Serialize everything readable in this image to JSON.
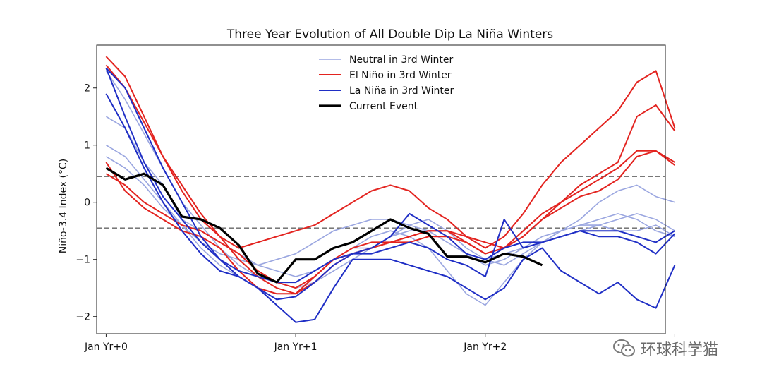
{
  "chart_data": {
    "type": "line",
    "title": "Three Year Evolution of All Double Dip La Niña Winters",
    "ylabel": "Niño-3.4 Index (°C)",
    "xlabel": "",
    "xlim": [
      -0.5,
      29.5
    ],
    "ylim": [
      -2.3,
      2.75
    ],
    "xticks": [
      {
        "x": 0,
        "label": "Jan Yr+0"
      },
      {
        "x": 10,
        "label": "Jan Yr+1"
      },
      {
        "x": 20,
        "label": "Jan Yr+2"
      },
      {
        "x": 30,
        "label": ""
      }
    ],
    "yticks": [
      -2,
      -1,
      0,
      1,
      2
    ],
    "reference_lines": [
      0.45,
      -0.45
    ],
    "grid": false,
    "legend_placement": "top-center",
    "colors": {
      "neutral": "#9aa6e0",
      "elnino": "#e3231f",
      "lanina": "#1f2ec5",
      "current": "#000000",
      "refline": "#666666"
    },
    "legend": [
      {
        "key": "neutral",
        "label": "Neutral in 3rd Winter"
      },
      {
        "key": "elnino",
        "label": "El Niño in 3rd Winter"
      },
      {
        "key": "lanina",
        "label": "La Niña in 3rd Winter"
      },
      {
        "key": "current",
        "label": "Current Event"
      }
    ],
    "series": [
      {
        "group": "neutral",
        "values": [
          1.5,
          1.3,
          0.7,
          0.3,
          -0.3,
          -0.5,
          -0.7,
          -0.9,
          -1.1,
          -1.2,
          -1.3,
          -1.2,
          -1.0,
          -0.8,
          -0.8,
          -0.6,
          -0.5,
          -0.5,
          -0.7,
          -0.9,
          -1.0,
          -0.9,
          -0.8,
          -0.7,
          -0.6,
          -0.5,
          -0.4,
          -0.3,
          -0.2,
          -0.3,
          -0.5
        ]
      },
      {
        "group": "neutral",
        "values": [
          2.3,
          1.8,
          1.2,
          0.6,
          0.0,
          -0.4,
          -0.8,
          -1.1,
          -1.3,
          -1.4,
          -1.5,
          -1.4,
          -1.2,
          -1.0,
          -0.8,
          -0.6,
          -0.4,
          -0.3,
          -0.5,
          -0.8,
          -1.0,
          -1.1,
          -0.9,
          -0.7,
          -0.5,
          -0.3,
          0.0,
          0.2,
          0.3,
          0.1,
          0.0
        ]
      },
      {
        "group": "neutral",
        "values": [
          0.8,
          0.6,
          0.3,
          -0.1,
          -0.4,
          -0.7,
          -0.9,
          -1.0,
          -1.1,
          -1.0,
          -0.9,
          -0.7,
          -0.5,
          -0.4,
          -0.3,
          -0.3,
          -0.4,
          -0.5,
          -0.7,
          -0.9,
          -1.1,
          -1.0,
          -0.8,
          -0.6,
          -0.5,
          -0.4,
          -0.4,
          -0.5,
          -0.5,
          -0.4,
          -0.6
        ]
      },
      {
        "group": "neutral",
        "values": [
          1.0,
          0.8,
          0.4,
          0.0,
          -0.4,
          -0.8,
          -1.1,
          -1.3,
          -1.5,
          -1.6,
          -1.6,
          -1.3,
          -1.0,
          -0.8,
          -0.6,
          -0.5,
          -0.6,
          -0.8,
          -1.2,
          -1.6,
          -1.8,
          -1.4,
          -1.0,
          -0.7,
          -0.5,
          -0.4,
          -0.3,
          -0.2,
          -0.3,
          -0.5,
          -0.6
        ]
      },
      {
        "group": "elnino",
        "values": [
          2.55,
          2.2,
          1.5,
          0.8,
          0.2,
          -0.3,
          -0.6,
          -0.8,
          -0.7,
          -0.6,
          -0.5,
          -0.4,
          -0.2,
          0.0,
          0.2,
          0.3,
          0.2,
          -0.1,
          -0.3,
          -0.6,
          -0.8,
          -0.6,
          -0.2,
          0.3,
          0.7,
          1.0,
          1.3,
          1.6,
          2.1,
          2.3,
          1.3
        ]
      },
      {
        "group": "elnino",
        "values": [
          2.4,
          2.0,
          1.4,
          0.8,
          0.3,
          -0.2,
          -0.6,
          -1.0,
          -1.3,
          -1.5,
          -1.6,
          -1.3,
          -1.0,
          -0.8,
          -0.7,
          -0.7,
          -0.6,
          -0.5,
          -0.5,
          -0.6,
          -0.7,
          -0.8,
          -0.6,
          -0.3,
          0.0,
          0.3,
          0.5,
          0.7,
          1.5,
          1.7,
          1.25
        ]
      },
      {
        "group": "elnino",
        "values": [
          0.7,
          0.2,
          -0.1,
          -0.3,
          -0.5,
          -0.6,
          -0.8,
          -1.2,
          -1.5,
          -1.6,
          -1.6,
          -1.4,
          -1.1,
          -0.9,
          -0.8,
          -0.7,
          -0.6,
          -0.5,
          -0.5,
          -0.7,
          -0.9,
          -0.8,
          -0.5,
          -0.2,
          0.0,
          0.2,
          0.4,
          0.6,
          0.9,
          0.9,
          0.7
        ]
      },
      {
        "group": "elnino",
        "values": [
          0.5,
          0.3,
          0.0,
          -0.2,
          -0.4,
          -0.5,
          -0.7,
          -0.9,
          -1.2,
          -1.4,
          -1.5,
          -1.3,
          -1.0,
          -0.9,
          -0.8,
          -0.7,
          -0.7,
          -0.6,
          -0.6,
          -0.7,
          -0.9,
          -0.8,
          -0.6,
          -0.3,
          -0.1,
          0.1,
          0.2,
          0.4,
          0.8,
          0.9,
          0.65
        ]
      },
      {
        "group": "lanina",
        "values": [
          2.35,
          2.0,
          1.3,
          0.6,
          0.0,
          -0.6,
          -1.0,
          -1.3,
          -1.5,
          -1.7,
          -1.65,
          -1.4,
          -1.1,
          -0.9,
          -0.8,
          -0.6,
          -0.2,
          -0.4,
          -0.6,
          -0.9,
          -1.0,
          -0.8,
          -0.7,
          -0.7,
          -0.6,
          -0.5,
          -0.5,
          -0.5,
          -0.6,
          -0.7,
          -0.5
        ]
      },
      {
        "group": "lanina",
        "values": [
          1.9,
          1.3,
          0.6,
          0.0,
          -0.5,
          -0.9,
          -1.2,
          -1.3,
          -1.5,
          -1.8,
          -2.1,
          -2.05,
          -1.5,
          -1.0,
          -1.0,
          -1.0,
          -1.1,
          -1.2,
          -1.3,
          -1.5,
          -1.7,
          -1.5,
          -1.0,
          -0.8,
          -1.2,
          -1.4,
          -1.6,
          -1.4,
          -1.7,
          -1.85,
          -1.1
        ]
      },
      {
        "group": "lanina",
        "values": [
          2.35,
          1.5,
          0.7,
          0.1,
          -0.3,
          -0.7,
          -1.0,
          -1.2,
          -1.3,
          -1.4,
          -1.4,
          -1.2,
          -1.0,
          -0.9,
          -0.9,
          -0.8,
          -0.7,
          -0.8,
          -1.0,
          -1.1,
          -1.3,
          -0.3,
          -0.8,
          -0.7,
          -0.6,
          -0.5,
          -0.6,
          -0.6,
          -0.7,
          -0.9,
          -0.55
        ]
      },
      {
        "group": "current",
        "values": [
          0.6,
          0.4,
          0.5,
          0.3,
          -0.25,
          -0.3,
          -0.45,
          -0.75,
          -1.25,
          -1.4,
          -1.0,
          -1.0,
          -0.8,
          -0.7,
          -0.5,
          -0.3,
          -0.45,
          -0.55,
          -0.95,
          -0.95,
          -1.05,
          -0.9,
          -0.95,
          -1.1
        ]
      }
    ]
  },
  "watermark": {
    "text": "环球科学猫"
  }
}
